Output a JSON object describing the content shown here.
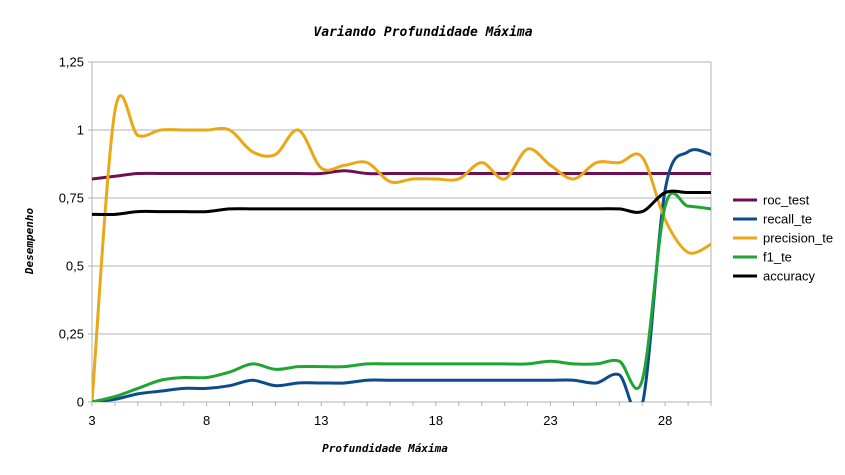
{
  "chart_data": {
    "type": "line",
    "title": "Variando Profundidade Máxima",
    "xlabel": "Profundidade Máxima",
    "ylabel": "Desempenho",
    "xlim": [
      3,
      30
    ],
    "ylim": [
      0,
      1.25
    ],
    "x_ticks": [
      3,
      8,
      13,
      18,
      23,
      28
    ],
    "y_ticks": [
      0,
      0.25,
      0.5,
      0.75,
      1,
      1.25
    ],
    "y_tick_labels": [
      "0",
      "0,25",
      "0,5",
      "0,75",
      "1",
      "1,25"
    ],
    "grid": "horizontal",
    "legend_position": "right",
    "x": [
      3,
      4,
      5,
      6,
      7,
      8,
      9,
      10,
      11,
      12,
      13,
      14,
      15,
      16,
      17,
      18,
      19,
      20,
      21,
      22,
      23,
      24,
      25,
      26,
      27,
      28,
      29,
      30
    ],
    "series": [
      {
        "name": "roc_test",
        "color": "#6b1052",
        "values": [
          0.82,
          0.83,
          0.84,
          0.84,
          0.84,
          0.84,
          0.84,
          0.84,
          0.84,
          0.84,
          0.84,
          0.85,
          0.84,
          0.84,
          0.84,
          0.84,
          0.84,
          0.84,
          0.84,
          0.84,
          0.84,
          0.84,
          0.84,
          0.84,
          0.84,
          0.84,
          0.84,
          0.84
        ]
      },
      {
        "name": "recall_te",
        "color": "#0d4b8b",
        "values": [
          0.0,
          0.01,
          0.03,
          0.04,
          0.05,
          0.05,
          0.06,
          0.08,
          0.06,
          0.07,
          0.07,
          0.07,
          0.08,
          0.08,
          0.08,
          0.08,
          0.08,
          0.08,
          0.08,
          0.08,
          0.08,
          0.08,
          0.07,
          0.1,
          -0.01,
          0.78,
          0.92,
          0.91
        ]
      },
      {
        "name": "precision_te",
        "color": "#e9a817",
        "values": [
          0.0,
          1.07,
          0.98,
          1.0,
          1.0,
          1.0,
          1.0,
          0.92,
          0.91,
          1.0,
          0.86,
          0.87,
          0.88,
          0.81,
          0.82,
          0.82,
          0.82,
          0.88,
          0.82,
          0.93,
          0.87,
          0.82,
          0.88,
          0.88,
          0.9,
          0.67,
          0.55,
          0.58
        ]
      },
      {
        "name": "f1_te",
        "color": "#1ea533",
        "values": [
          0.0,
          0.02,
          0.05,
          0.08,
          0.09,
          0.09,
          0.11,
          0.14,
          0.12,
          0.13,
          0.13,
          0.13,
          0.14,
          0.14,
          0.14,
          0.14,
          0.14,
          0.14,
          0.14,
          0.14,
          0.15,
          0.14,
          0.14,
          0.15,
          0.08,
          0.72,
          0.72,
          0.71
        ]
      },
      {
        "name": "accuracy",
        "color": "#000000",
        "values": [
          0.69,
          0.69,
          0.7,
          0.7,
          0.7,
          0.7,
          0.71,
          0.71,
          0.71,
          0.71,
          0.71,
          0.71,
          0.71,
          0.71,
          0.71,
          0.71,
          0.71,
          0.71,
          0.71,
          0.71,
          0.71,
          0.71,
          0.71,
          0.71,
          0.7,
          0.77,
          0.77,
          0.77
        ]
      }
    ]
  }
}
